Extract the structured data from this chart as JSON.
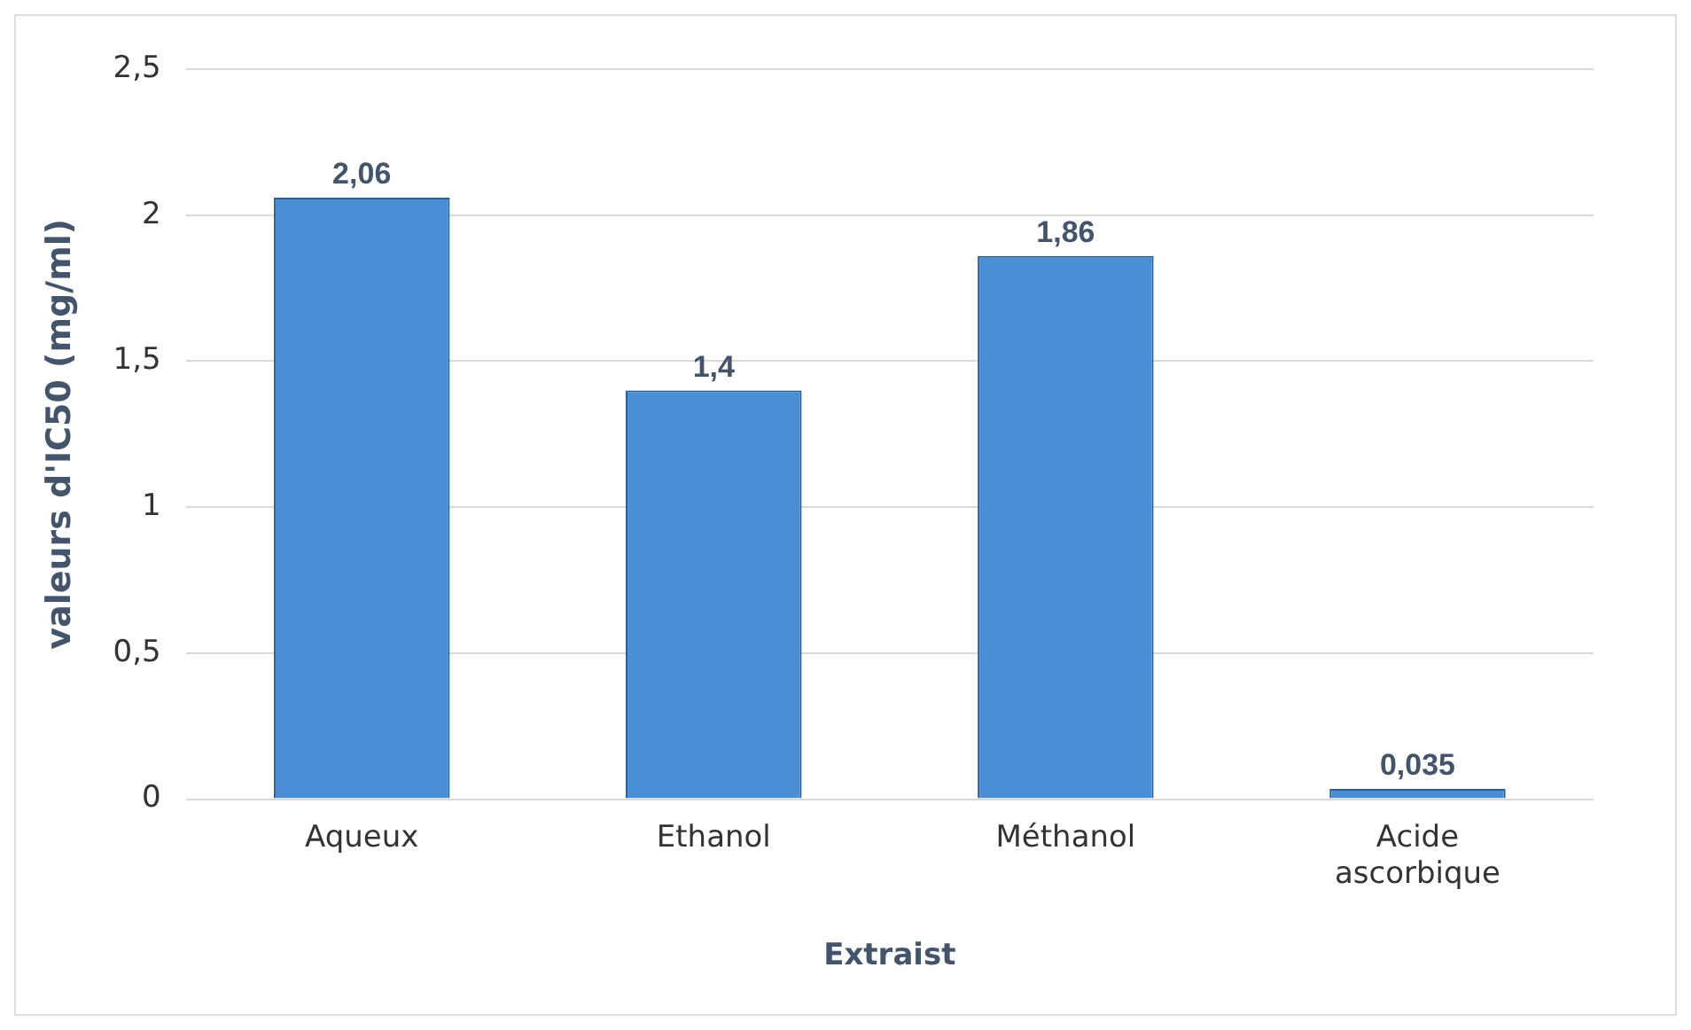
{
  "chart_data": {
    "type": "bar",
    "xlabel": "Extraist",
    "ylabel": "valeurs d'IC50 (mg/ml)",
    "categories": [
      "Aqueux",
      "Ethanol",
      "Méthanol",
      "Acide ascorbique"
    ],
    "values": [
      2.06,
      1.4,
      1.86,
      0.035
    ],
    "value_labels": [
      "2,06",
      "1,4",
      "1,86",
      "0,035"
    ],
    "color": "#4a8fd6",
    "ylim": [
      0,
      2.5
    ],
    "yticks": [
      0,
      {
        "value": 0.5,
        "label": "0,5"
      },
      1,
      {
        "value": 1.5,
        "label": "1,5"
      },
      2,
      {
        "value": 2.5,
        "label": "2,5"
      }
    ],
    "grid": "y",
    "legend": false
  }
}
